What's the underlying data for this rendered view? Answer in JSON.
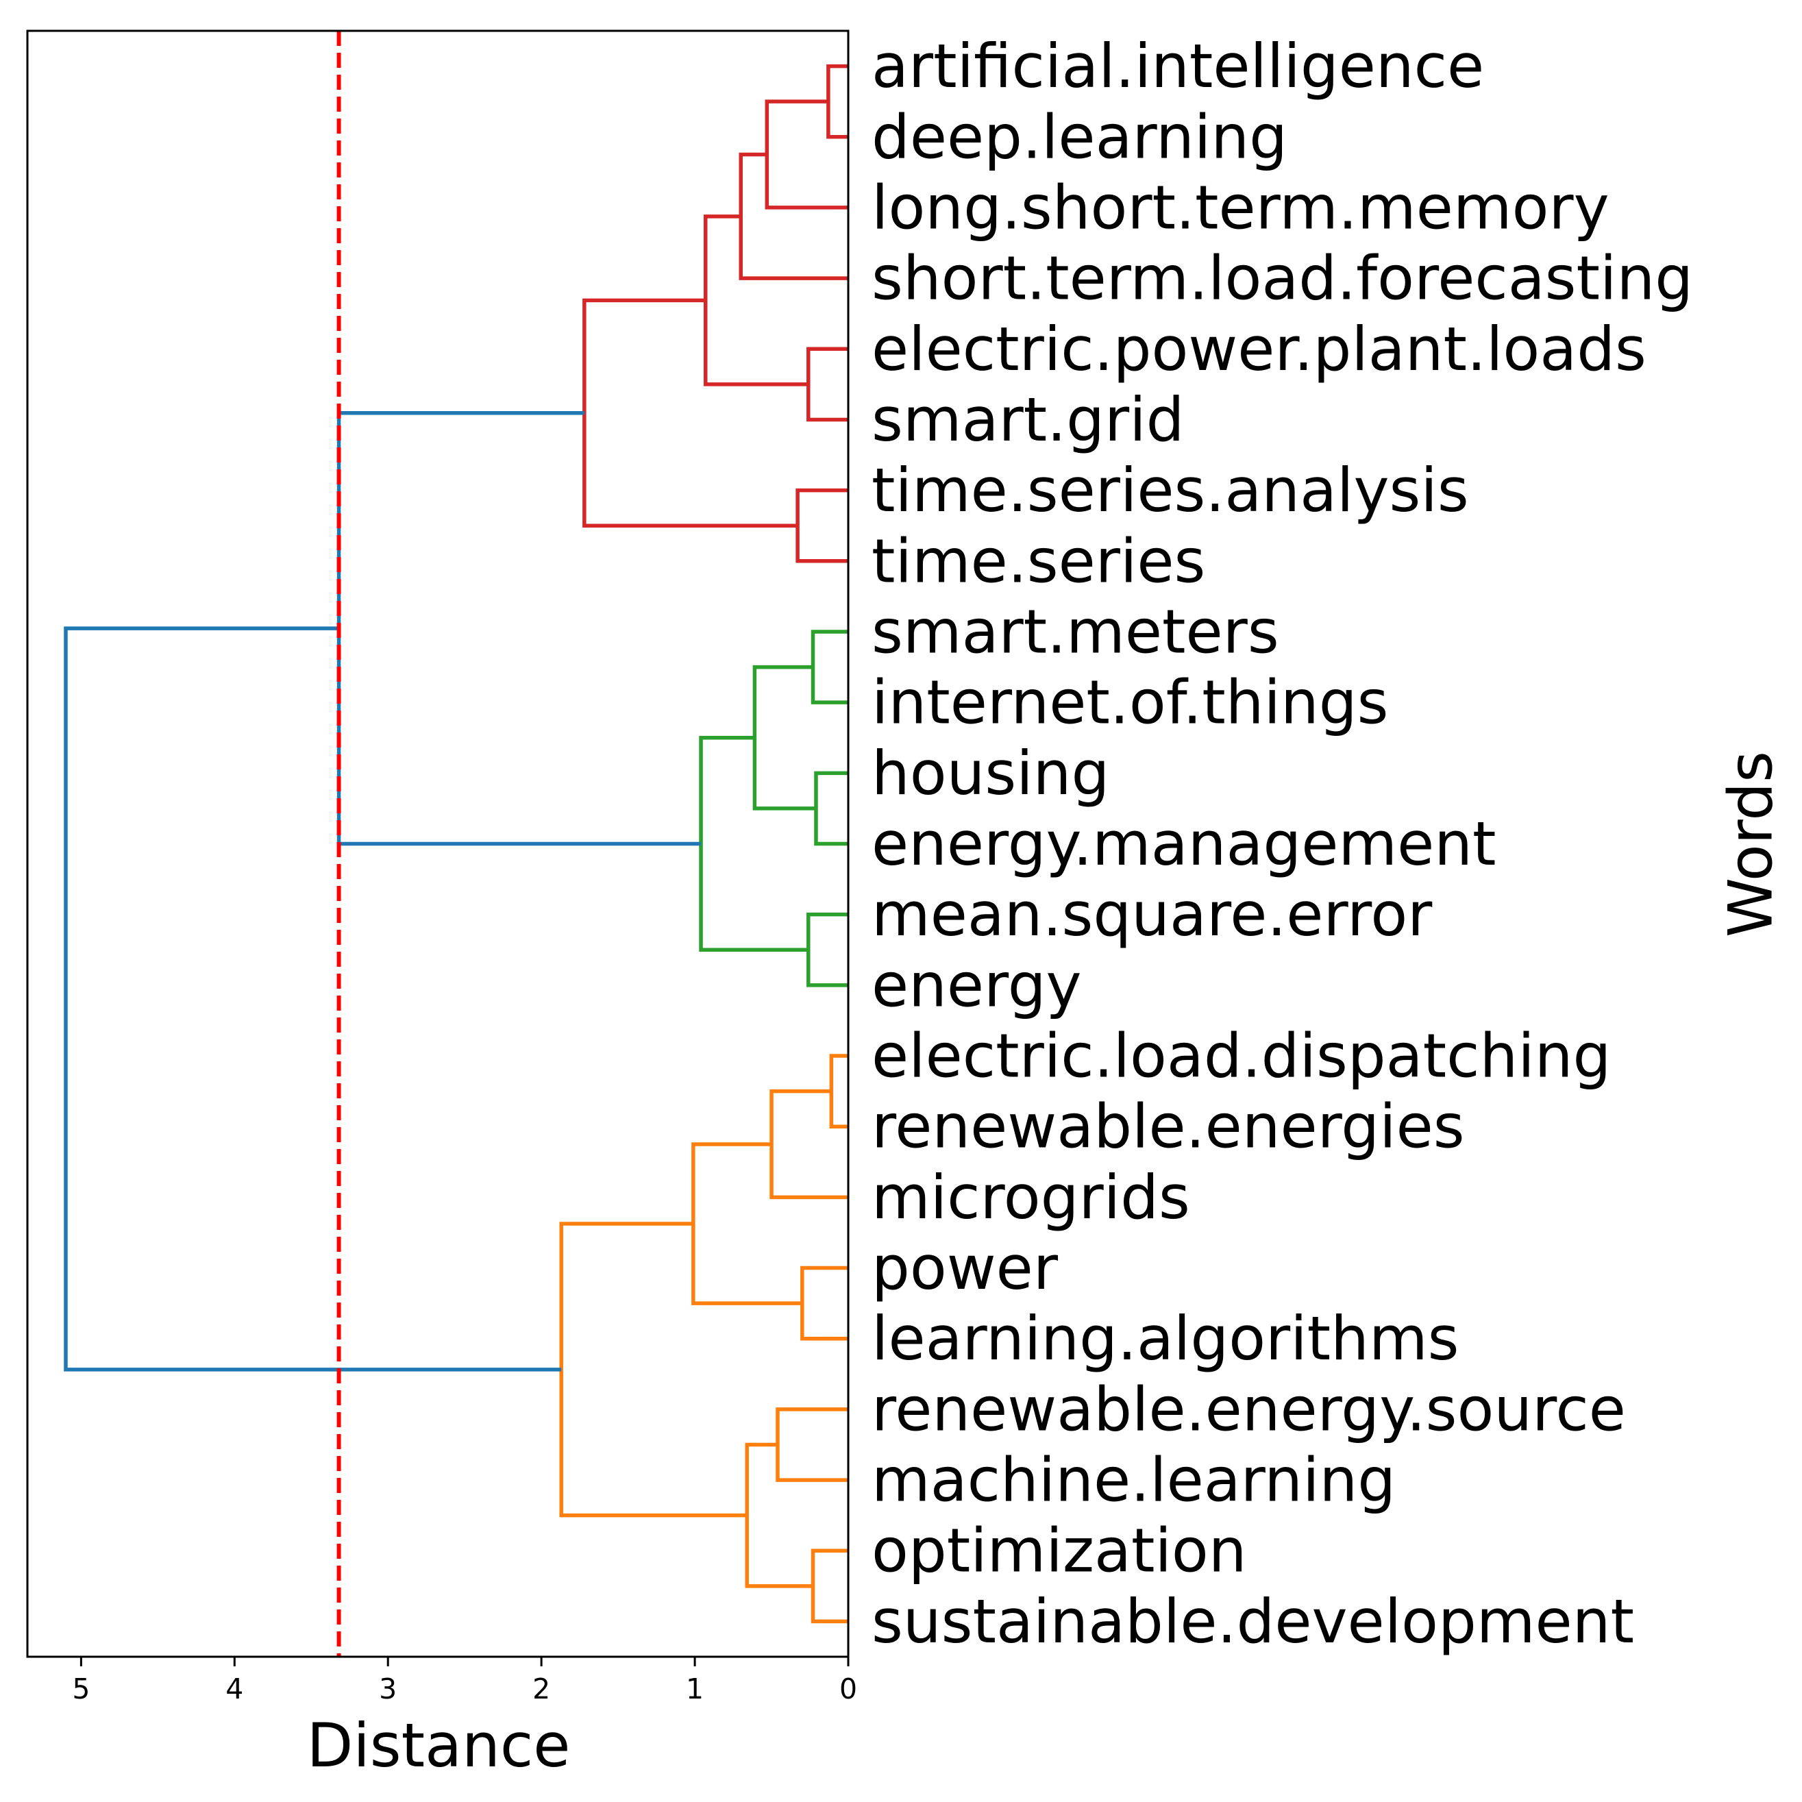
{
  "chart_data": {
    "type": "dendrogram",
    "orientation": "left",
    "xlabel": "Distance",
    "ylabel": "Words",
    "xlim": [
      5.35,
      0
    ],
    "xticks": [
      5,
      4,
      3,
      2,
      1,
      0
    ],
    "threshold": {
      "value": 3.32,
      "color": "#ff0000",
      "style": "dashed"
    },
    "colors": {
      "cluster_red": "#d62728",
      "cluster_green": "#2ca02c",
      "cluster_orange": "#ff7f0e",
      "above_threshold": "#1f77b4",
      "frame": "#000000"
    },
    "leaves": [
      "artificial.intelligence",
      "deep.learning",
      "long.short.term.memory",
      "short.term.load.forecasting",
      "electric.power.plant.loads",
      "smart.grid",
      "time.series.analysis",
      "time.series",
      "smart.meters",
      "internet.of.things",
      "housing",
      "energy.management",
      "mean.square.error",
      "energy",
      "electric.load.dispatching",
      "renewable.energies",
      "microgrids",
      "power",
      "learning.algorithms",
      "renewable.energy.source",
      "machine.learning",
      "optimization",
      "sustainable.development"
    ],
    "merges": [
      {
        "id": "m1",
        "children": [
          "L0",
          "L1"
        ],
        "distance": 0.13,
        "color": "cluster_red"
      },
      {
        "id": "m2",
        "children": [
          "m1",
          "L2"
        ],
        "distance": 0.53,
        "color": "cluster_red"
      },
      {
        "id": "m3",
        "children": [
          "m2",
          "L3"
        ],
        "distance": 0.7,
        "color": "cluster_red"
      },
      {
        "id": "m4",
        "children": [
          "L4",
          "L5"
        ],
        "distance": 0.26,
        "color": "cluster_red"
      },
      {
        "id": "m5",
        "children": [
          "m3",
          "m4"
        ],
        "distance": 0.93,
        "color": "cluster_red"
      },
      {
        "id": "m6",
        "children": [
          "L6",
          "L7"
        ],
        "distance": 0.33,
        "color": "cluster_red"
      },
      {
        "id": "m7",
        "children": [
          "m5",
          "m6"
        ],
        "distance": 1.72,
        "color": "cluster_red"
      },
      {
        "id": "m8",
        "children": [
          "L8",
          "L9"
        ],
        "distance": 0.23,
        "color": "cluster_green"
      },
      {
        "id": "m9",
        "children": [
          "L10",
          "L11"
        ],
        "distance": 0.21,
        "color": "cluster_green"
      },
      {
        "id": "m10",
        "children": [
          "m8",
          "m9"
        ],
        "distance": 0.61,
        "color": "cluster_green"
      },
      {
        "id": "m11",
        "children": [
          "L12",
          "L13"
        ],
        "distance": 0.26,
        "color": "cluster_green"
      },
      {
        "id": "m12",
        "children": [
          "m10",
          "m11"
        ],
        "distance": 0.96,
        "color": "cluster_green"
      },
      {
        "id": "m13",
        "children": [
          "m7",
          "m12"
        ],
        "distance": 3.32,
        "color": "above_threshold"
      },
      {
        "id": "m14",
        "children": [
          "L14",
          "L15"
        ],
        "distance": 0.11,
        "color": "cluster_orange"
      },
      {
        "id": "m15",
        "children": [
          "m14",
          "L16"
        ],
        "distance": 0.5,
        "color": "cluster_orange"
      },
      {
        "id": "m16",
        "children": [
          "L17",
          "L18"
        ],
        "distance": 0.3,
        "color": "cluster_orange"
      },
      {
        "id": "m17",
        "children": [
          "m15",
          "m16"
        ],
        "distance": 1.01,
        "color": "cluster_orange"
      },
      {
        "id": "m18",
        "children": [
          "L19",
          "L20"
        ],
        "distance": 0.46,
        "color": "cluster_orange"
      },
      {
        "id": "m19",
        "children": [
          "L21",
          "L22"
        ],
        "distance": 0.23,
        "color": "cluster_orange"
      },
      {
        "id": "m20",
        "children": [
          "m18",
          "m19"
        ],
        "distance": 0.66,
        "color": "cluster_orange"
      },
      {
        "id": "m21",
        "children": [
          "m17",
          "m20"
        ],
        "distance": 1.87,
        "color": "cluster_orange"
      },
      {
        "id": "m22",
        "children": [
          "m13",
          "m21"
        ],
        "distance": 5.1,
        "color": "above_threshold"
      }
    ]
  }
}
